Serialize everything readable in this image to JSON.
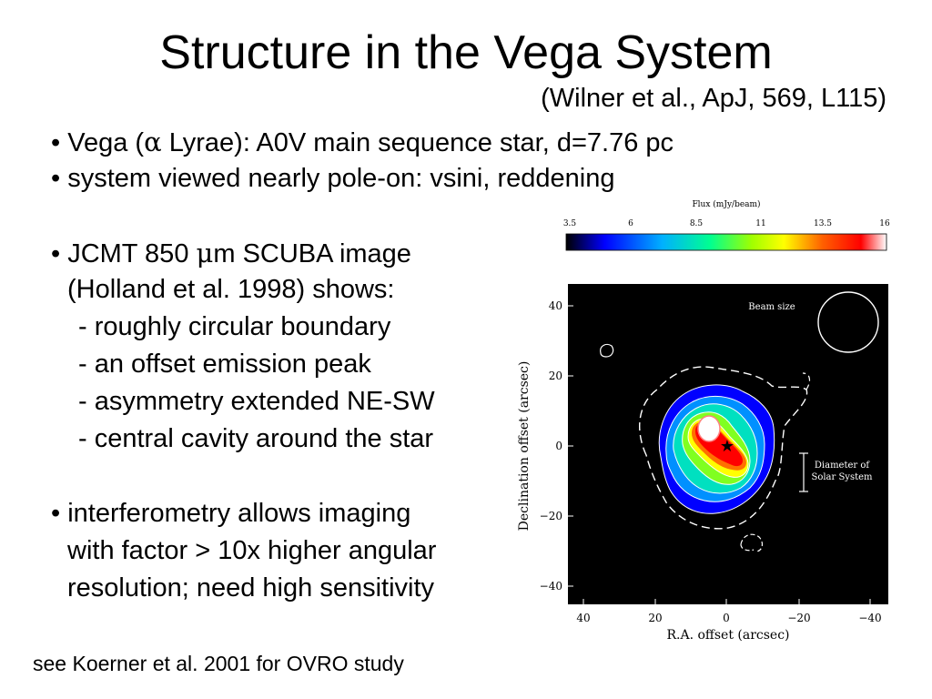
{
  "title": "Structure in the Vega System",
  "subtitle": "(Wilner et al., ApJ, 569, L115)",
  "bullets": {
    "b1_a": "• Vega (",
    "b1_sym": "α",
    "b1_b": " Lyrae): A0V main sequence star, d=7.76 pc",
    "b2": "• system viewed nearly pole-on: vsini, reddening",
    "b3_a": "• JCMT 850 ",
    "b3_sym": "μ",
    "b3_b": "m SCUBA image",
    "b3_line2": "(Holland et al. 1998) shows:",
    "b3_items": [
      "- roughly circular boundary",
      "- an offset emission peak",
      "- asymmetry extended NE-SW",
      "- central cavity around the star"
    ],
    "b4_lines": [
      "• interferometry allows imaging",
      "with factor > 10x higher angular",
      "resolution; need high sensitivity"
    ]
  },
  "footnote": "see Koerner et al. 2001 for OVRO study",
  "figure": {
    "colorbar_label": "Flux (mJy/beam)",
    "colorbar_ticks": [
      "3.5",
      "6",
      "8.5",
      "11",
      "13.5",
      "16"
    ],
    "beam_label": "Beam size",
    "solar_label_1": "Diameter of",
    "solar_label_2": "Solar System",
    "xlabel": "R.A. offset (arcsec)",
    "ylabel": "Declination offset (arcsec)",
    "x_ticks": [
      "40",
      "20",
      "0",
      "−20",
      "−40"
    ],
    "y_ticks": [
      "40",
      "20",
      "0",
      "−20",
      "−40"
    ],
    "colors": {
      "colormap": [
        "#000000",
        "#0000ff",
        "#00b0ff",
        "#00ff90",
        "#a0ff00",
        "#ffff00",
        "#ff8000",
        "#ff0000",
        "#ffffff"
      ]
    }
  }
}
